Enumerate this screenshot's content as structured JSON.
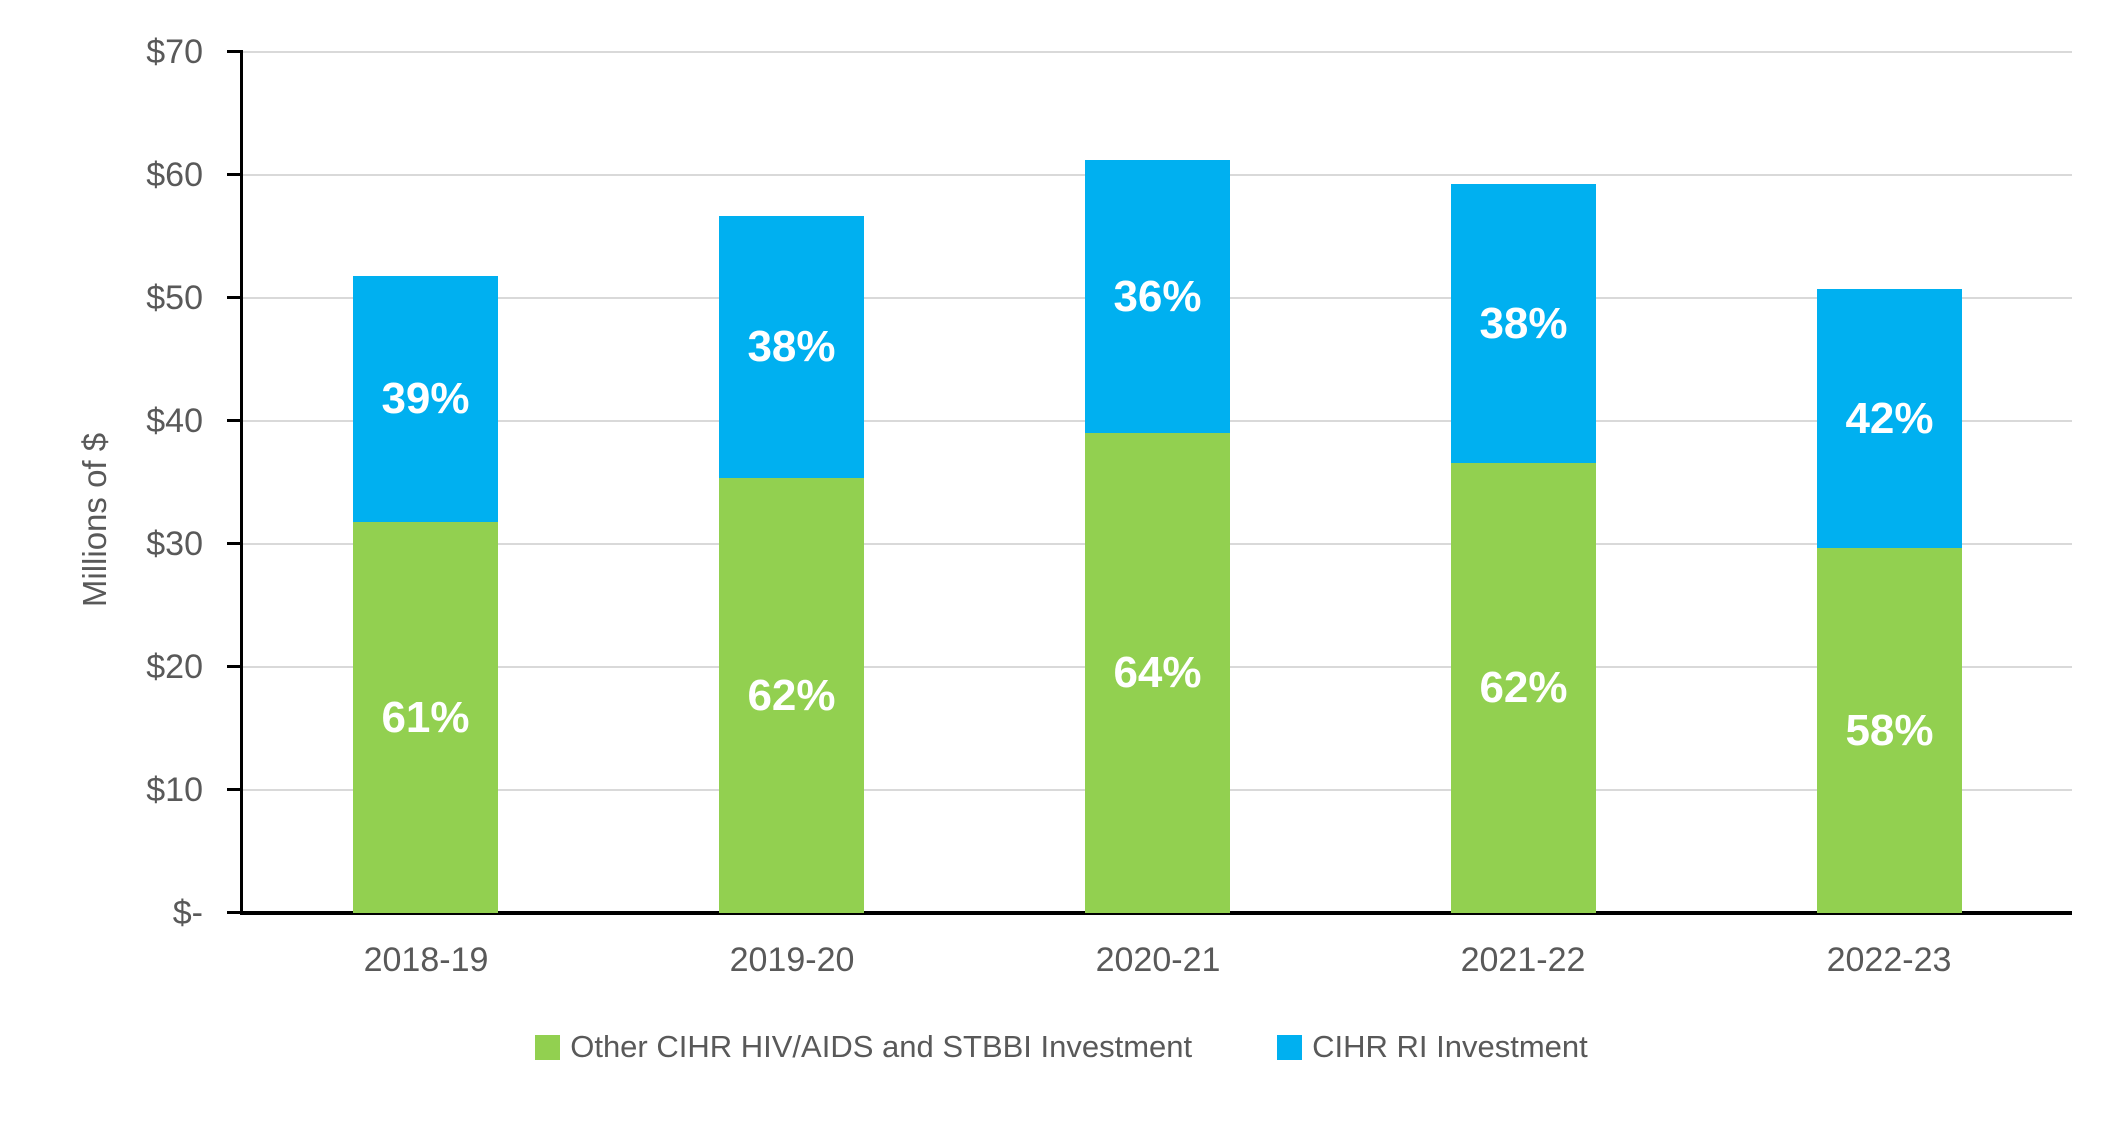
{
  "chart_data": {
    "type": "bar",
    "subtype": "stacked",
    "title": "",
    "categories": [
      "2018-19",
      "2019-20",
      "2020-21",
      "2021-22",
      "2022-23"
    ],
    "series": [
      {
        "name": "Other CIHR HIV/AIDS and STBBI Investment",
        "color": "#92D050",
        "values": [
          31.8,
          35.4,
          39.0,
          36.6,
          29.7
        ],
        "percent_labels": [
          "61%",
          "62%",
          "64%",
          "62%",
          "58%"
        ]
      },
      {
        "name": "CIHR RI Investment",
        "color": "#00B0F0",
        "values": [
          20.0,
          21.3,
          22.2,
          22.7,
          21.0
        ],
        "percent_labels": [
          "39%",
          "38%",
          "36%",
          "38%",
          "42%"
        ]
      }
    ],
    "totals": [
      51.8,
      56.7,
      61.2,
      59.3,
      50.7
    ],
    "xlabel": "",
    "ylabel": "Millions of $",
    "ylim": [
      0,
      70
    ],
    "ytick_step": 10,
    "ytick_labels": [
      "$-",
      "$10",
      "$20",
      "$30",
      "$40",
      "$50",
      "$60",
      "$70"
    ],
    "grid": true,
    "legend_position": "bottom",
    "colors": {
      "gridline": "#D9D9D9",
      "axis": "#000000",
      "tick_text": "#595959",
      "bar_label_text": "#FFFFFF",
      "background": "#FFFFFF"
    }
  }
}
